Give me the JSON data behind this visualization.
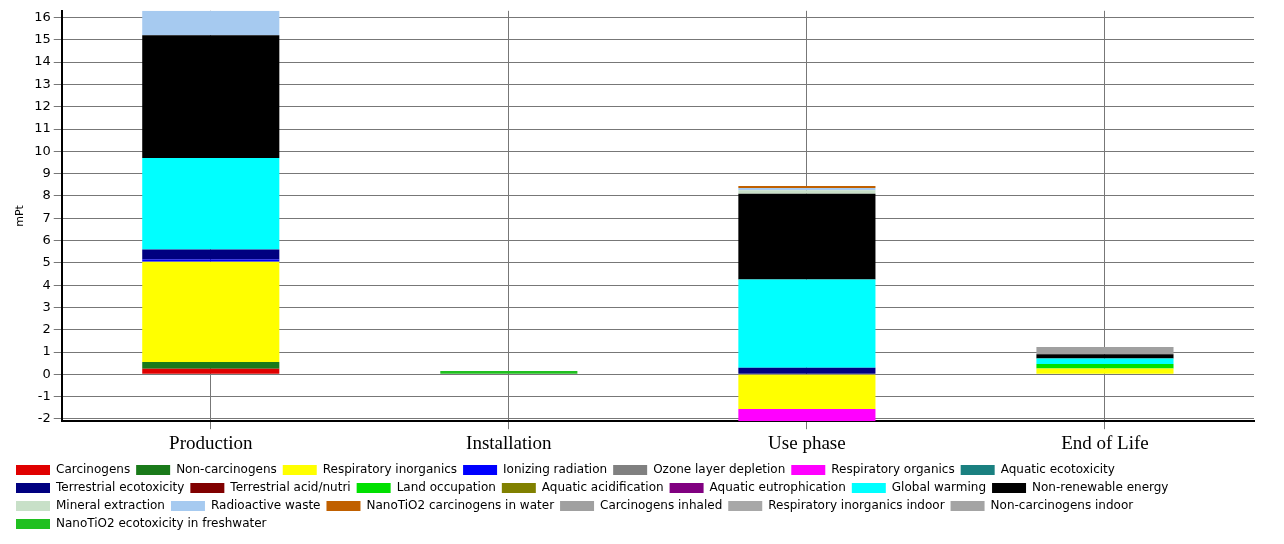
{
  "chart_data": {
    "type": "bar",
    "stacked": true,
    "ylabel": "mPt",
    "categories": [
      "Production",
      "Installation",
      "Use phase",
      "End of Life"
    ],
    "ylim": [
      -2.1,
      16.3
    ],
    "yticks": [
      -2,
      -1,
      0,
      1,
      2,
      3,
      4,
      5,
      6,
      7,
      8,
      9,
      10,
      11,
      12,
      13,
      14,
      15,
      16
    ],
    "grid": true,
    "legend": "bottom",
    "series": [
      {
        "name": "Carcinogens",
        "color": "#e00000",
        "values": [
          0.25,
          null,
          null,
          null
        ]
      },
      {
        "name": "Non-carcinogens",
        "color": "#1a7a1a",
        "values": [
          0.3,
          null,
          null,
          null
        ]
      },
      {
        "name": "Respiratory inorganics",
        "color": "#ffff00",
        "values": [
          4.5,
          null,
          -1.55,
          0.26
        ]
      },
      {
        "name": "Ionizing radiation",
        "color": "#0000ff",
        "values": [
          0.1,
          null,
          null,
          null
        ]
      },
      {
        "name": "Ozone layer depletion",
        "color": "#808080",
        "values": [
          null,
          null,
          null,
          null
        ]
      },
      {
        "name": "Respiratory organics",
        "color": "#ff00ff",
        "values": [
          null,
          null,
          -0.55,
          null
        ]
      },
      {
        "name": "Aquatic ecotoxicity",
        "color": "#1a8080",
        "values": [
          null,
          null,
          null,
          null
        ]
      },
      {
        "name": "Terrestrial ecotoxicity",
        "color": "#000080",
        "values": [
          0.45,
          null,
          0.3,
          null
        ]
      },
      {
        "name": "Terrestrial acid/nutri",
        "color": "#800000",
        "values": [
          null,
          null,
          null,
          null
        ]
      },
      {
        "name": "Land occupation",
        "color": "#00e000",
        "values": [
          null,
          null,
          null,
          0.2
        ]
      },
      {
        "name": "Aquatic acidification",
        "color": "#808000",
        "values": [
          null,
          null,
          null,
          null
        ]
      },
      {
        "name": "Aquatic eutrophication",
        "color": "#800080",
        "values": [
          null,
          null,
          null,
          null
        ]
      },
      {
        "name": "Global warming",
        "color": "#00ffff",
        "values": [
          4.1,
          null,
          3.95,
          0.25
        ]
      },
      {
        "name": "Non-renewable energy",
        "color": "#000000",
        "values": [
          5.5,
          null,
          3.85,
          0.19
        ]
      },
      {
        "name": "Mineral extraction",
        "color": "#c8e0c8",
        "values": [
          null,
          null,
          0.15,
          null
        ]
      },
      {
        "name": "Radioactive waste",
        "color": "#a6caf0",
        "values": [
          1.1,
          null,
          0.1,
          null
        ]
      },
      {
        "name": "NanoTiO2 carcinogens in water",
        "color": "#c06000",
        "values": [
          null,
          null,
          0.1,
          null
        ]
      },
      {
        "name": "Carcinogens inhaled",
        "color": "#a0a0a0",
        "values": [
          null,
          null,
          null,
          0.33
        ]
      },
      {
        "name": "Respiratory inorganics indoor",
        "color": "#a8a8a8",
        "values": [
          null,
          null,
          null,
          null
        ]
      },
      {
        "name": "Non-carcinogens indoor",
        "color": "#a4a4a4",
        "values": [
          null,
          null,
          null,
          null
        ]
      },
      {
        "name": "NanoTiO2 ecotoxicity in freshwater",
        "color": "#20c020",
        "values": [
          null,
          0.15,
          null,
          null
        ]
      }
    ]
  }
}
